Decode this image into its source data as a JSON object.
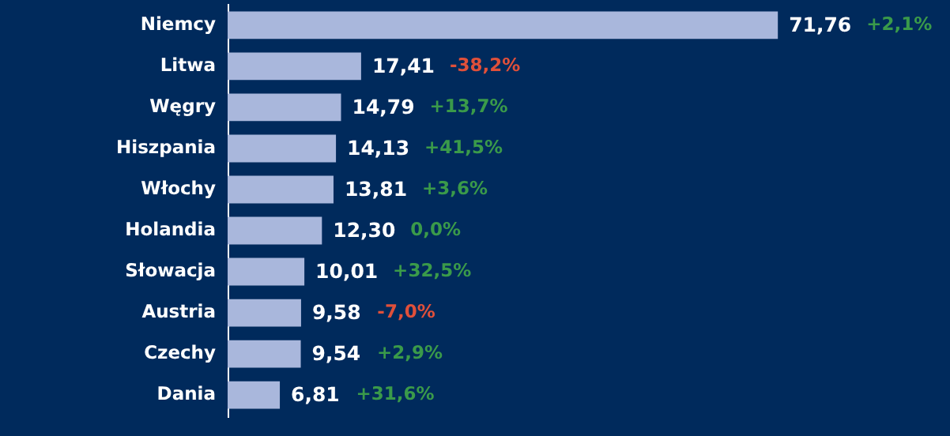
{
  "chart_data": {
    "type": "bar",
    "orientation": "horizontal",
    "color": "#a9b7dc",
    "categories": [
      "Niemcy",
      "Litwa",
      "Węgry",
      "Hiszpania",
      "Włochy",
      "Holandia",
      "Słowacja",
      "Austria",
      "Czechy",
      "Dania"
    ],
    "values": [
      71.76,
      17.41,
      14.79,
      14.13,
      13.81,
      12.3,
      10.01,
      9.58,
      9.54,
      6.81
    ],
    "value_labels": [
      "71,76",
      "17,41",
      "14,79",
      "14,13",
      "13,81",
      "12,30",
      "10,01",
      "9,58",
      "9,54",
      "6,81"
    ],
    "annotations": [
      "+2,1%",
      "-38,2%",
      "+13,7%",
      "+41,5%",
      "+3,6%",
      "0,0%",
      "+32,5%",
      "-7,0%",
      "+2,9%",
      "+31,6%"
    ]
  }
}
